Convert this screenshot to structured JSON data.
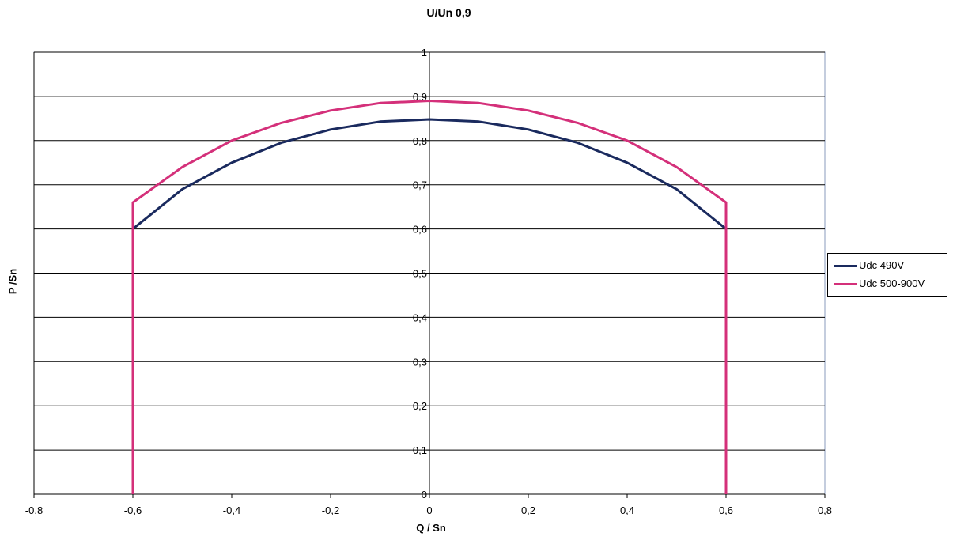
{
  "chart_data": {
    "type": "line",
    "title": "U/Un 0,9",
    "xlabel": "Q / Sn",
    "ylabel": "P /Sn",
    "xlim": [
      -0.8,
      0.8
    ],
    "ylim": [
      0,
      1
    ],
    "x_ticks": [
      "-0,8",
      "-0,6",
      "-0,4",
      "-0,2",
      "0",
      "0,2",
      "0,4",
      "0,6",
      "0,8"
    ],
    "y_ticks": [
      "0",
      "0,1",
      "0,2",
      "0,3",
      "0,4",
      "0,5",
      "0,6",
      "0,7",
      "0,8",
      "0,9",
      "1"
    ],
    "grid": "horizontal",
    "legend_position": "right",
    "series": [
      {
        "name": "Udc 490V",
        "color": "#1a2a5e",
        "x": [
          -0.6,
          -0.5,
          -0.4,
          -0.3,
          -0.2,
          -0.1,
          0,
          0.1,
          0.2,
          0.3,
          0.4,
          0.5,
          0.6
        ],
        "y": [
          0.6,
          0.69,
          0.75,
          0.795,
          0.825,
          0.843,
          0.848,
          0.843,
          0.825,
          0.795,
          0.75,
          0.69,
          0.6
        ]
      },
      {
        "name": "Udc 500-900V",
        "color": "#d4307a",
        "x": [
          -0.6,
          -0.6,
          -0.5,
          -0.4,
          -0.3,
          -0.2,
          -0.1,
          0,
          0.1,
          0.2,
          0.3,
          0.4,
          0.5,
          0.6,
          0.6
        ],
        "y": [
          0,
          0.66,
          0.74,
          0.8,
          0.84,
          0.868,
          0.885,
          0.89,
          0.885,
          0.868,
          0.84,
          0.8,
          0.74,
          0.66,
          0
        ]
      }
    ]
  }
}
